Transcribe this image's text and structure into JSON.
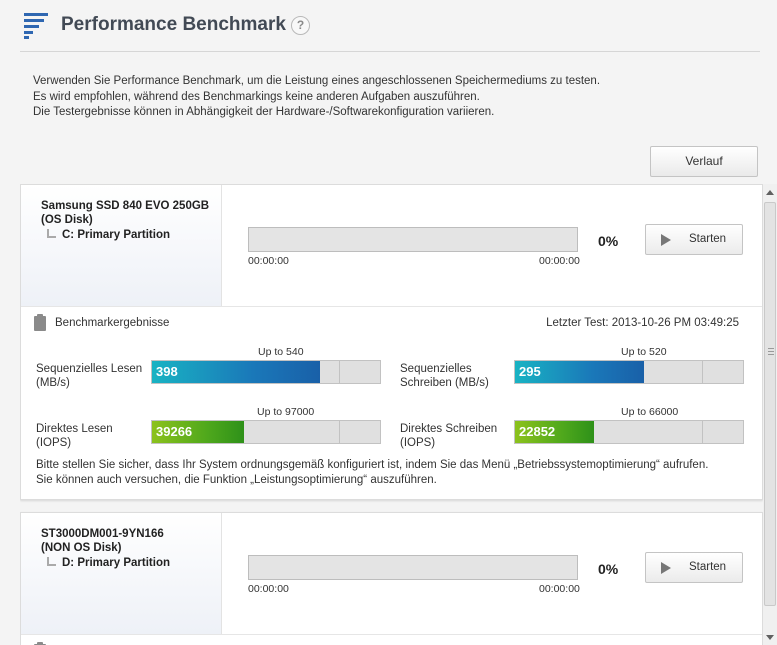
{
  "header": {
    "title": "Performance Benchmark",
    "help_label": "?",
    "logo_icon": "benchmark-list-icon",
    "accent_color": "#2f67b1"
  },
  "intro": {
    "line1": "Verwenden Sie Performance Benchmark, um die Leistung eines angeschlossenen Speichermediums zu testen.",
    "line2": "Es wird empfohlen, während des Benchmarkings keine anderen Aufgaben auszuführen.",
    "line3": "Die Testergebnisse können in Abhängigkeit der Hardware-/Softwarekonfiguration variieren."
  },
  "history_button": "Verlauf",
  "drives": [
    {
      "name_line1": "Samsung SSD 840 EVO 250GB",
      "name_line2": "(OS Disk)",
      "partition": "C: Primary Partition",
      "progress_value": 0,
      "progress_text": "0%",
      "time_start": "00:00:00",
      "time_end": "00:00:00",
      "start_label": "Starten",
      "results": {
        "label": "Benchmarkergebnisse",
        "last_test": "Letzter Test: 2013-10-26 PM 03:49:25",
        "metrics": [
          {
            "label_line1": "Sequenzielles Lesen",
            "label_line2": "(MB/s)",
            "upto": "Up to 540",
            "value": "398",
            "value_num": 398,
            "max": 540,
            "color": "blue"
          },
          {
            "label_line1": "Sequenzielles",
            "label_line2": "Schreiben (MB/s)",
            "upto": "Up to 520",
            "value": "295",
            "value_num": 295,
            "max": 520,
            "color": "blue"
          },
          {
            "label_line1": "Direktes Lesen",
            "label_line2": "(IOPS)",
            "upto": "Up to 97000",
            "value": "39266",
            "value_num": 39266,
            "max": 97000,
            "color": "green"
          },
          {
            "label_line1": "Direktes Schreiben",
            "label_line2": "(IOPS)",
            "upto": "Up to 66000",
            "value": "22852",
            "value_num": 22852,
            "max": 66000,
            "color": "green"
          }
        ],
        "note_line1": "Bitte stellen Sie sicher, dass Ihr System ordnungsgemäß konfiguriert ist, indem Sie das Menü „Betriebssystemoptimierung“ aufrufen.",
        "note_line2": "Sie können auch versuchen, die Funktion „Leistungsoptimierung“ auszuführen."
      }
    },
    {
      "name_line1": "ST3000DM001-9YN166",
      "name_line2": "(NON OS Disk)",
      "partition": "D: Primary Partition",
      "progress_value": 0,
      "progress_text": "0%",
      "time_start": "00:00:00",
      "time_end": "00:00:00",
      "start_label": "Starten"
    }
  ]
}
